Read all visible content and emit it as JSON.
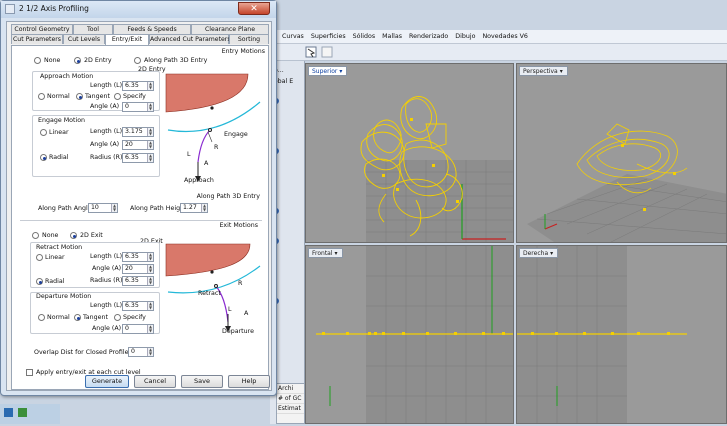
{
  "rhino": {
    "menu": [
      "Curvas",
      "Superficies",
      "Sólidos",
      "Mallas",
      "Renderizado",
      "Dibujo",
      "Novedades V6"
    ],
    "viewports": {
      "top": "Superior",
      "perspective": "Perspectiva",
      "front": "Frontal",
      "right": "Derecha"
    },
    "side_labels": [
      "Archi",
      "# of GC",
      "Estimat"
    ],
    "panel_labels": [
      "ip...",
      "lobal E"
    ]
  },
  "dialog": {
    "title": "2 1/2 Axis Profiling",
    "close": "✕",
    "tabs_row1": [
      "Control Geometry",
      "Tool",
      "Feeds & Speeds",
      "Clearance Plane"
    ],
    "tabs_row2": [
      "Cut Parameters",
      "Cut Levels",
      "Entry/Exit",
      "Advanced Cut Parameters",
      "Sorting"
    ],
    "entry": {
      "section": "Entry Motions",
      "opt_none": "None",
      "opt_2d": "2D Entry",
      "opt_path3d": "Along Path 3D Entry",
      "preview_caption": "2D Entry",
      "approach_group": "Approach Motion",
      "normal": "Normal",
      "tangent": "Tangent",
      "specify": "Specify",
      "length_lbl": "Length (L)",
      "length_val": "6.35",
      "angle_lbl": "Angle (A)",
      "angle_val": "0",
      "engage_group": "Engage Motion",
      "linear": "Linear",
      "radial": "Radial",
      "e_length_lbl": "Length (L)",
      "e_length_val": "3.175",
      "e_angle_lbl": "Angle (A)",
      "e_angle_val": "20",
      "e_radius_lbl": "Radius (R)",
      "e_radius_val": "6.35",
      "diagram_engage": "Engage",
      "diagram_approach": "Approach",
      "diagram_r": "R",
      "diagram_l": "L",
      "diagram_a": "A",
      "path3d_caption": "Along Path 3D Entry",
      "path_angle_lbl": "Along Path Angle",
      "path_angle_val": "10",
      "path_height_lbl": "Along Path Height",
      "path_height_val": "1.27"
    },
    "exit": {
      "section": "Exit Motions",
      "opt_none": "None",
      "opt_2d": "2D Exit",
      "preview_caption": "2D Exit",
      "retract_group": "Retract Motion",
      "linear": "Linear",
      "radial": "Radial",
      "length_lbl": "Length (L)",
      "length_val": "6.35",
      "angle_lbl": "Angle (A)",
      "angle_val": "20",
      "radius_lbl": "Radius (R)",
      "radius_val": "6.35",
      "departure_group": "Departure Motion",
      "normal": "Normal",
      "tangent": "Tangent",
      "specify": "Specify",
      "d_length_lbl": "Length (L)",
      "d_length_val": "6.35",
      "d_angle_lbl": "Angle (A)",
      "d_angle_val": "0",
      "diagram_retract": "Retract",
      "diagram_departure": "Departure",
      "diagram_r": "R",
      "diagram_l": "L",
      "diagram_a": "A",
      "overlap_lbl": "Overlap Dist for Closed Profiles",
      "overlap_val": "0"
    },
    "apply_each_level": "Apply entry/exit at each cut level",
    "buttons": {
      "generate": "Generate",
      "cancel": "Cancel",
      "save": "Save",
      "help": "Help"
    }
  },
  "colors": {
    "curve": "#f5d000",
    "axis_x": "#c82020",
    "axis_y": "#20a020",
    "title_blue": "#0a3ea0"
  }
}
